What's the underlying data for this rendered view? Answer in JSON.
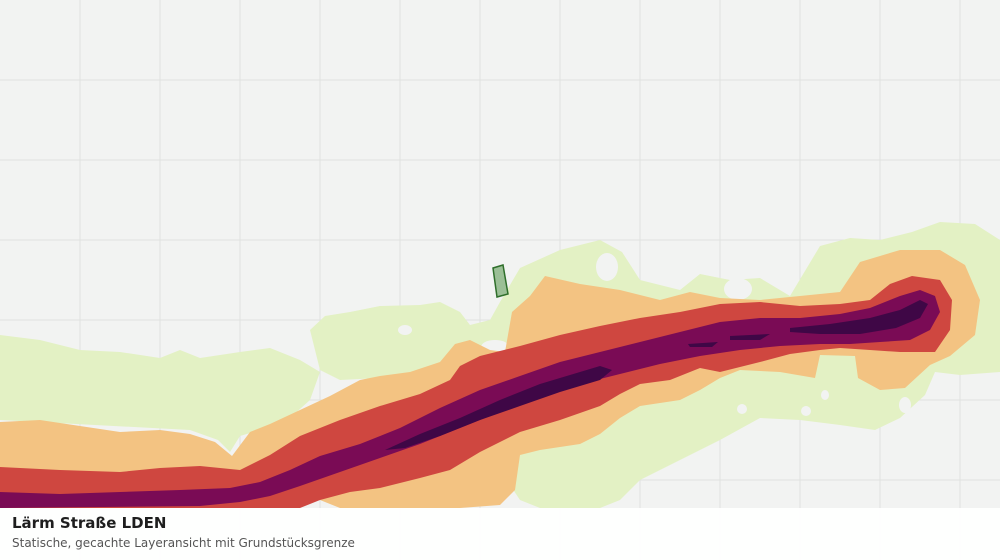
{
  "caption": {
    "title": "Lärm Straße LDEN",
    "subtitle": "Statische, gecachte Layeransicht mit Grundstücksgrenze"
  },
  "map": {
    "basemap_color": "#f2f3f2",
    "grid_color": "#e0e1e0",
    "noise_band_colors": [
      "#e3f1c4",
      "#f3c382",
      "#cf4740",
      "#7a0b55",
      "#3f0746"
    ],
    "parcel": {
      "fill": "#9bbf96",
      "stroke": "#2f6f2b"
    }
  }
}
